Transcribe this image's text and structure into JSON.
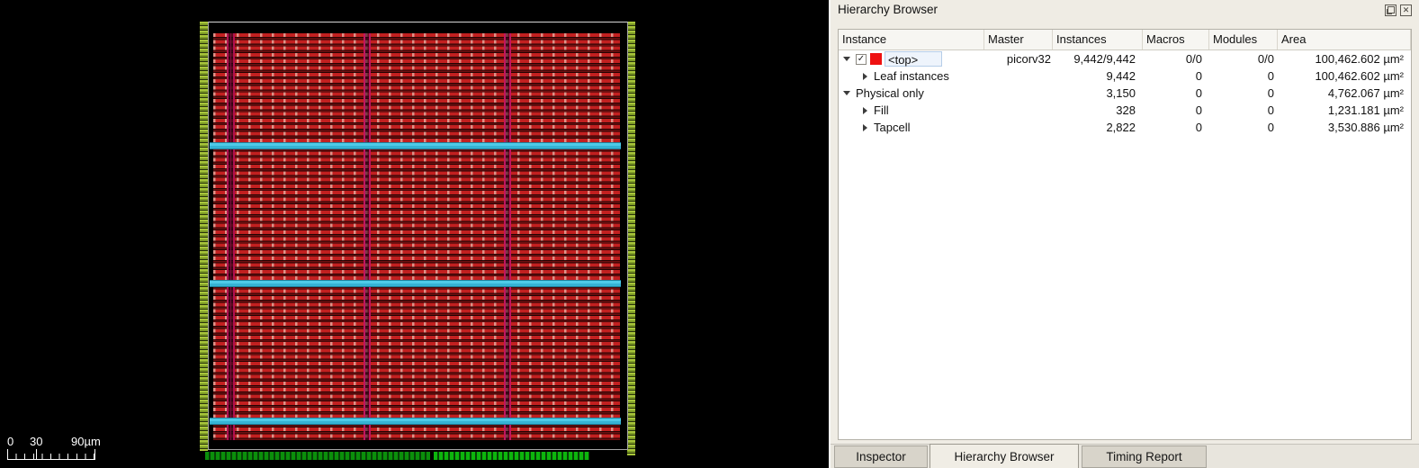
{
  "layout_viewer": {
    "scale_bar": {
      "labels": [
        "0",
        "30",
        "90µm"
      ]
    },
    "colors": {
      "background": "#000000",
      "core_row_red": "#c22020",
      "power_stripe_magenta": "#c01560",
      "rail_cyan": "#4ecbe8",
      "io_pin_green": "#9ab82f",
      "pad_green": "#0db50d",
      "die_outline": "#a6a6a6"
    }
  },
  "panel": {
    "title": "Hierarchy Browser",
    "tree": {
      "columns": [
        "Instance",
        "Master",
        "Instances",
        "Macros",
        "Modules",
        "Area"
      ],
      "rows": [
        {
          "instance": "<top>",
          "master": "picorv32",
          "instances": "9,442/9,442",
          "macros": "0/0",
          "modules": "0/0",
          "area": "100,462.602 µm²",
          "indent": 0,
          "expander": "open",
          "checkbox": true,
          "swatch": "#ee1111",
          "selected": true
        },
        {
          "instance": "Leaf instances",
          "master": "",
          "instances": "9,442",
          "macros": "0",
          "modules": "0",
          "area": "100,462.602 µm²",
          "indent": 1,
          "expander": "closed"
        },
        {
          "instance": "Physical only",
          "master": "",
          "instances": "3,150",
          "macros": "0",
          "modules": "0",
          "area": "4,762.067 µm²",
          "indent": 0,
          "expander": "open"
        },
        {
          "instance": "Fill",
          "master": "",
          "instances": "328",
          "macros": "0",
          "modules": "0",
          "area": "1,231.181 µm²",
          "indent": 1,
          "expander": "closed"
        },
        {
          "instance": "Tapcell",
          "master": "",
          "instances": "2,822",
          "macros": "0",
          "modules": "0",
          "area": "3,530.886 µm²",
          "indent": 1,
          "expander": "closed"
        }
      ]
    },
    "tabs": [
      {
        "label": "Inspector",
        "active": false
      },
      {
        "label": "Hierarchy Browser",
        "active": true
      },
      {
        "label": "Timing Report",
        "active": false
      }
    ],
    "close_glyph": "✕"
  }
}
